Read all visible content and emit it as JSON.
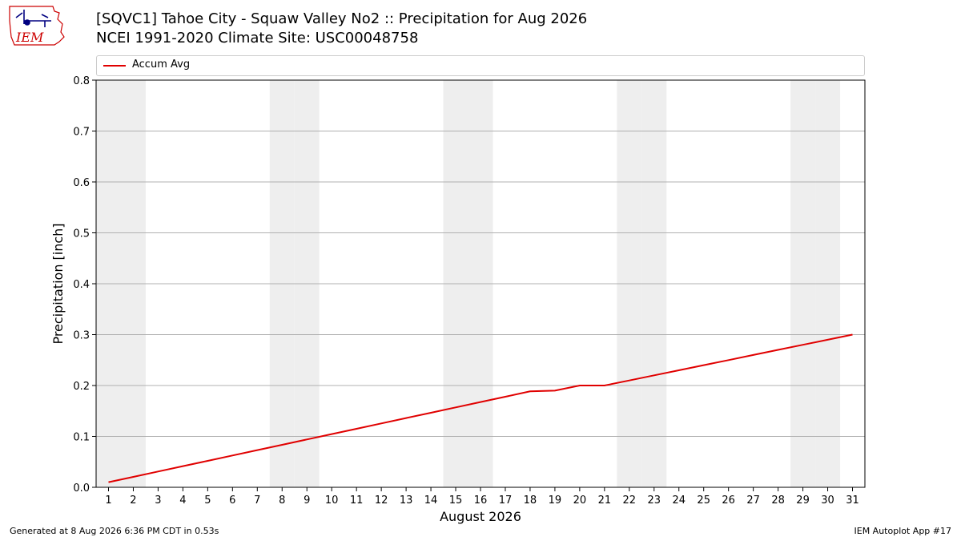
{
  "header": {
    "title_line1": "[SQVC1] Tahoe City - Squaw Valley No2 :: Precipitation for Aug 2026",
    "title_line2": "NCEI 1991-2020 Climate Site: USC00048758"
  },
  "logo": {
    "text": "IEM",
    "color": "#cc0000"
  },
  "footer": {
    "generated": "Generated at 8 Aug 2026 6:36 PM CDT in 0.53s",
    "app": "IEM Autoplot App #17"
  },
  "chart_data": {
    "type": "line",
    "xlabel": "August 2026",
    "ylabel": "Precipitation [inch]",
    "ylim": [
      0,
      0.8
    ],
    "yticks": [
      "0.0",
      "0.1",
      "0.2",
      "0.3",
      "0.4",
      "0.5",
      "0.6",
      "0.7",
      "0.8"
    ],
    "x": [
      1,
      2,
      3,
      4,
      5,
      6,
      7,
      8,
      9,
      10,
      11,
      12,
      13,
      14,
      15,
      16,
      17,
      18,
      19,
      20,
      21,
      22,
      23,
      24,
      25,
      26,
      27,
      28,
      29,
      30,
      31
    ],
    "weekend_days": [
      1,
      2,
      8,
      9,
      15,
      16,
      22,
      23,
      29,
      30
    ],
    "grid": "horizontal",
    "legend_position": "top",
    "series": [
      {
        "name": "Accum Avg",
        "color": "#e00000",
        "values": [
          0.01,
          0.0205,
          0.031,
          0.0415,
          0.052,
          0.0625,
          0.073,
          0.0835,
          0.094,
          0.1045,
          0.115,
          0.1255,
          0.136,
          0.1465,
          0.157,
          0.1675,
          0.178,
          0.1885,
          0.19,
          0.2,
          0.2,
          0.21,
          0.22,
          0.23,
          0.24,
          0.25,
          0.26,
          0.27,
          0.28,
          0.29,
          0.3
        ]
      }
    ]
  }
}
